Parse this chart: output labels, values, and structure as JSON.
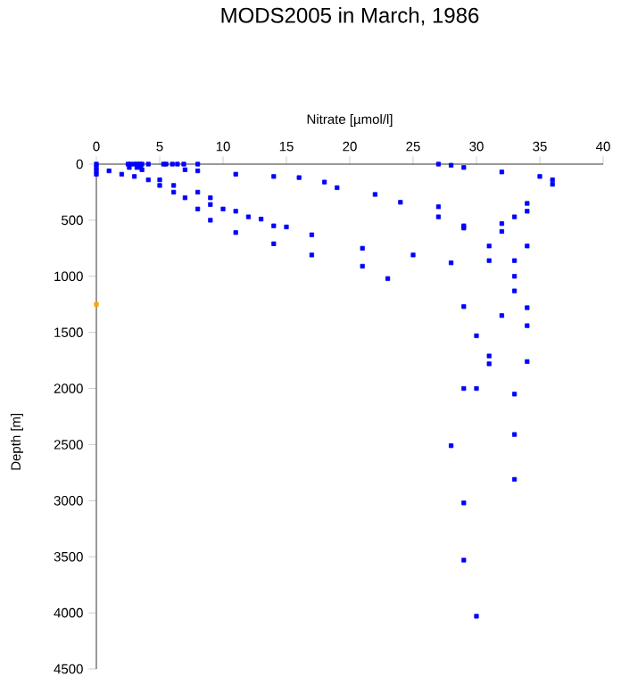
{
  "chart_data": {
    "type": "scatter",
    "title": "MODS2005 in March, 1986",
    "xlabel": "Nitrate [µmol/l]",
    "ylabel": "Depth [m]",
    "xlim": [
      0,
      40
    ],
    "xticks": [
      0,
      5,
      10,
      15,
      20,
      25,
      30,
      35,
      40
    ],
    "ylim": [
      4500,
      0
    ],
    "yticks": [
      0,
      500,
      1000,
      1500,
      2000,
      2500,
      3000,
      3500,
      4000,
      4500
    ],
    "marker": "square",
    "series": [
      {
        "color": "#0000ff",
        "x": [
          0,
          0,
          0,
          0,
          1,
          2,
          2.5,
          2.7,
          3,
          3.2,
          3.4,
          3.6,
          2.6,
          3.2,
          3.5,
          3,
          3.6,
          4.1,
          4.1,
          5,
          5,
          5.3,
          5.5,
          6,
          6.1,
          6.1,
          6.4,
          6.9,
          7,
          7,
          8,
          8,
          8,
          8,
          9,
          9,
          9,
          10,
          11,
          11,
          11,
          12,
          13,
          14,
          14,
          14,
          15,
          16,
          17,
          17,
          18,
          19,
          21,
          21,
          22,
          23,
          24,
          25,
          27,
          27,
          27,
          28,
          28,
          29,
          29,
          29,
          29,
          30,
          31,
          31,
          31,
          31,
          32,
          32,
          32,
          32,
          33,
          33,
          33,
          33,
          34,
          34,
          34,
          34,
          34,
          34,
          35,
          36,
          36,
          29,
          30,
          33,
          33,
          28,
          33,
          29,
          29,
          30
        ],
        "values": [
          0,
          30,
          60,
          90,
          60,
          90,
          0,
          0,
          0,
          0,
          0,
          0,
          30,
          30,
          30,
          110,
          50,
          140,
          0,
          140,
          190,
          0,
          0,
          0,
          190,
          250,
          0,
          0,
          50,
          300,
          0,
          60,
          250,
          400,
          300,
          360,
          500,
          400,
          90,
          420,
          610,
          470,
          490,
          110,
          550,
          710,
          560,
          120,
          630,
          810,
          160,
          210,
          750,
          910,
          270,
          1020,
          340,
          810,
          0,
          380,
          470,
          10,
          880,
          30,
          550,
          570,
          1270,
          1530,
          730,
          860,
          1710,
          1780,
          70,
          530,
          600,
          1350,
          470,
          860,
          1000,
          1130,
          350,
          420,
          730,
          1280,
          1440,
          1760,
          110,
          140,
          180,
          2000,
          2000,
          2050,
          2410,
          2510,
          2810,
          3020,
          3530,
          4030
        ]
      },
      {
        "color": "#ffa500",
        "x": [
          0
        ],
        "values": [
          1250
        ]
      }
    ]
  }
}
